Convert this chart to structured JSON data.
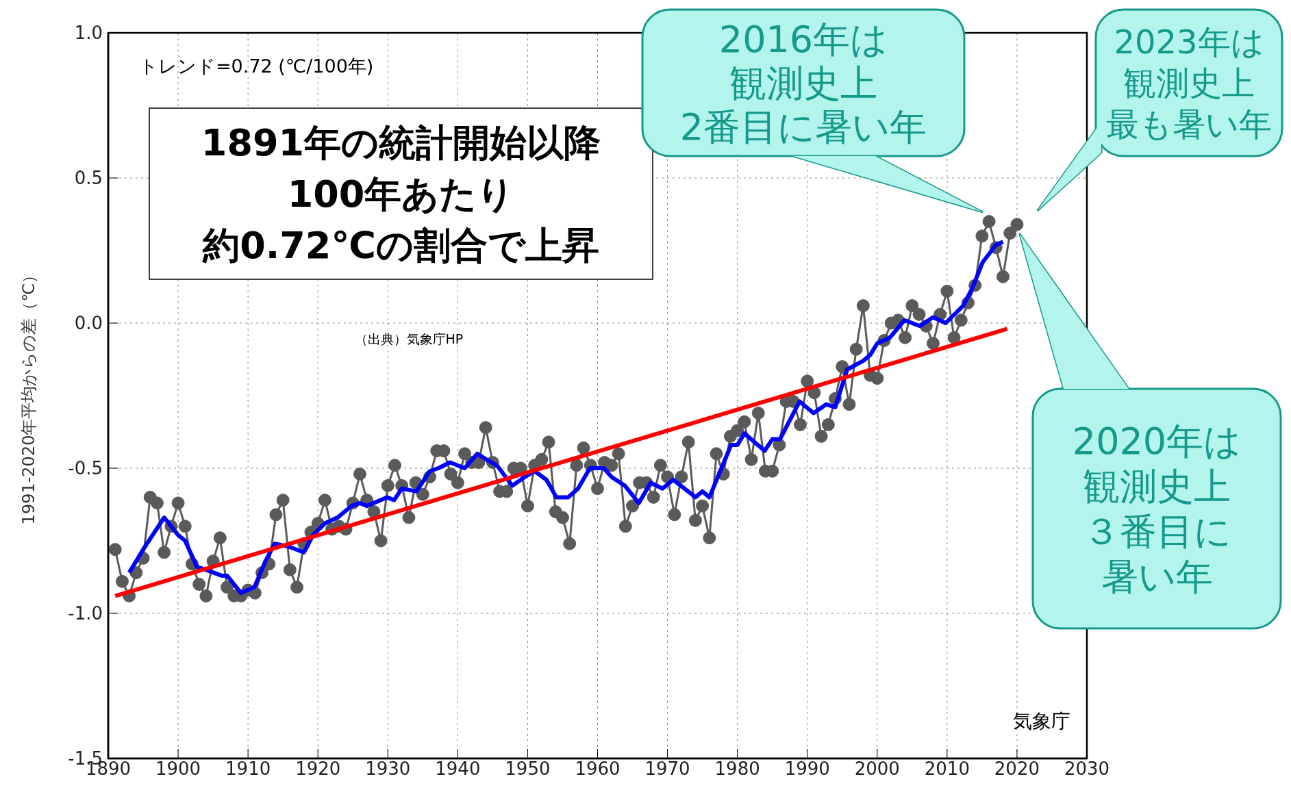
{
  "chart_data": {
    "type": "line",
    "ylabel": "1991-2020年平均からの差（℃）",
    "xlim": [
      1890,
      2030
    ],
    "xticks": [
      1890,
      1900,
      1910,
      1920,
      1930,
      1940,
      1950,
      1960,
      1970,
      1980,
      1990,
      2000,
      2010,
      2020,
      2030
    ],
    "ylim": [
      -1.5,
      1.0
    ],
    "yticks": [
      {
        "value": -1.5,
        "label": "-1.5"
      },
      {
        "value": -1,
        "label": "-1.0"
      },
      {
        "value": -0.5,
        "label": "-0.5"
      },
      {
        "value": 0,
        "label": "0.0"
      },
      {
        "value": 0.5,
        "label": "0.5"
      },
      {
        "value": 1,
        "label": "1.0"
      }
    ],
    "grid": true,
    "series": [
      {
        "color": "#5a5a5a",
        "marker": "circle",
        "x": [
          1891,
          1892,
          1893,
          1894,
          1895,
          1896,
          1897,
          1898,
          1899,
          1900,
          1901,
          1902,
          1903,
          1904,
          1905,
          1906,
          1907,
          1908,
          1909,
          1910,
          1911,
          1912,
          1913,
          1914,
          1915,
          1916,
          1917,
          1918,
          1919,
          1920,
          1921,
          1922,
          1923,
          1924,
          1925,
          1926,
          1927,
          1928,
          1929,
          1930,
          1931,
          1932,
          1933,
          1934,
          1935,
          1936,
          1937,
          1938,
          1939,
          1940,
          1941,
          1942,
          1943,
          1944,
          1945,
          1946,
          1947,
          1948,
          1949,
          1950,
          1951,
          1952,
          1953,
          1954,
          1955,
          1956,
          1957,
          1958,
          1959,
          1960,
          1961,
          1962,
          1963,
          1964,
          1965,
          1966,
          1967,
          1968,
          1969,
          1970,
          1971,
          1972,
          1973,
          1974,
          1975,
          1976,
          1977,
          1978,
          1979,
          1980,
          1981,
          1982,
          1983,
          1984,
          1985,
          1986,
          1987,
          1988,
          1989,
          1990,
          1991,
          1992,
          1993,
          1994,
          1995,
          1996,
          1997,
          1998,
          1999,
          2000,
          2001,
          2002,
          2003,
          2004,
          2005,
          2006,
          2007,
          2008,
          2009,
          2010,
          2011,
          2012,
          2013,
          2014,
          2015,
          2016,
          2017,
          2018,
          2019,
          2020
        ],
        "values": [
          -0.78,
          -0.89,
          -0.94,
          -0.86,
          -0.81,
          -0.6,
          -0.62,
          -0.79,
          -0.7,
          -0.62,
          -0.7,
          -0.83,
          -0.9,
          -0.94,
          -0.82,
          -0.74,
          -0.91,
          -0.94,
          -0.94,
          -0.92,
          -0.93,
          -0.86,
          -0.83,
          -0.66,
          -0.61,
          -0.85,
          -0.91,
          -0.76,
          -0.72,
          -0.69,
          -0.61,
          -0.71,
          -0.7,
          -0.71,
          -0.62,
          -0.52,
          -0.61,
          -0.65,
          -0.75,
          -0.56,
          -0.49,
          -0.56,
          -0.67,
          -0.55,
          -0.59,
          -0.53,
          -0.44,
          -0.44,
          -0.52,
          -0.55,
          -0.45,
          -0.48,
          -0.48,
          -0.36,
          -0.48,
          -0.58,
          -0.58,
          -0.5,
          -0.5,
          -0.63,
          -0.49,
          -0.47,
          -0.41,
          -0.65,
          -0.67,
          -0.76,
          -0.49,
          -0.43,
          -0.49,
          -0.57,
          -0.48,
          -0.49,
          -0.45,
          -0.7,
          -0.63,
          -0.55,
          -0.55,
          -0.6,
          -0.49,
          -0.53,
          -0.66,
          -0.53,
          -0.41,
          -0.68,
          -0.63,
          -0.74,
          -0.45,
          -0.52,
          -0.39,
          -0.37,
          -0.34,
          -0.47,
          -0.31,
          -0.51,
          -0.51,
          -0.42,
          -0.27,
          -0.27,
          -0.35,
          -0.2,
          -0.24,
          -0.39,
          -0.35,
          -0.26,
          -0.15,
          -0.28,
          -0.09,
          0.06,
          -0.18,
          -0.19,
          -0.06,
          0.0,
          0.01,
          -0.05,
          0.06,
          0.03,
          -0.01,
          -0.07,
          0.03,
          0.11,
          -0.05,
          0.01,
          0.07,
          0.13,
          0.3,
          0.35,
          0.26,
          0.16,
          0.31,
          0.34
        ]
      },
      {
        "color": "#0000ff",
        "x": [
          1893,
          1895,
          1898,
          1900,
          1901,
          1902.7,
          1904,
          1906.2,
          1907,
          1909,
          1910.9,
          1912.5,
          1913.8,
          1915.8,
          1918,
          1919.3,
          1921,
          1922.8,
          1924.8,
          1926,
          1927,
          1929.9,
          1930.9,
          1932,
          1934.1,
          1936,
          1937.2,
          1938.9,
          1941,
          1942.8,
          1944.1,
          1945.6,
          1947.8,
          1949.6,
          1951,
          1952.7,
          1954.1,
          1955.8,
          1957.2,
          1958.9,
          1960.9,
          1962,
          1963.9,
          1965.9,
          1967.6,
          1969.3,
          1970.8,
          1971.9,
          1974,
          1975,
          1976,
          1979.1,
          1980,
          1981,
          1983.9,
          1985,
          1986.1,
          1988.9,
          1990.9,
          1992.7,
          1994,
          1995.7,
          1998,
          1999,
          2000,
          2001.8,
          2003.9,
          2006.1,
          2008,
          2009.8,
          2012.3,
          2013.6,
          2015.1,
          2017,
          2018
        ],
        "values": [
          -0.86,
          -0.78,
          -0.67,
          -0.73,
          -0.75,
          -0.84,
          -0.85,
          -0.87,
          -0.87,
          -0.93,
          -0.91,
          -0.82,
          -0.76,
          -0.77,
          -0.79,
          -0.73,
          -0.69,
          -0.67,
          -0.63,
          -0.62,
          -0.63,
          -0.6,
          -0.61,
          -0.57,
          -0.58,
          -0.51,
          -0.5,
          -0.48,
          -0.5,
          -0.45,
          -0.47,
          -0.49,
          -0.56,
          -0.53,
          -0.51,
          -0.54,
          -0.6,
          -0.6,
          -0.57,
          -0.5,
          -0.5,
          -0.53,
          -0.56,
          -0.62,
          -0.55,
          -0.57,
          -0.54,
          -0.56,
          -0.6,
          -0.58,
          -0.6,
          -0.42,
          -0.42,
          -0.38,
          -0.44,
          -0.4,
          -0.4,
          -0.27,
          -0.31,
          -0.28,
          -0.29,
          -0.16,
          -0.13,
          -0.11,
          -0.07,
          -0.05,
          0.01,
          -0.01,
          0.02,
          0.0,
          0.06,
          0.12,
          0.21,
          0.27,
          0.28
        ]
      },
      {
        "color": "#ff0000",
        "x": [
          1891,
          2018.6
        ],
        "values": [
          -0.94,
          -0.02
        ]
      }
    ],
    "annotations": [
      "トレンド=0.72 (℃/100年)",
      "1891年の統計開始以降",
      "100年あたり",
      "約0.72℃の割合で上昇",
      "（出典）気象庁HP",
      "気象庁",
      "2016年は",
      "観測史上",
      "2番目に暑い年",
      "2020年は",
      "観測史上",
      "３番目に",
      "暑い年",
      "2023年は",
      "観測史上",
      "最も暑い年"
    ]
  }
}
